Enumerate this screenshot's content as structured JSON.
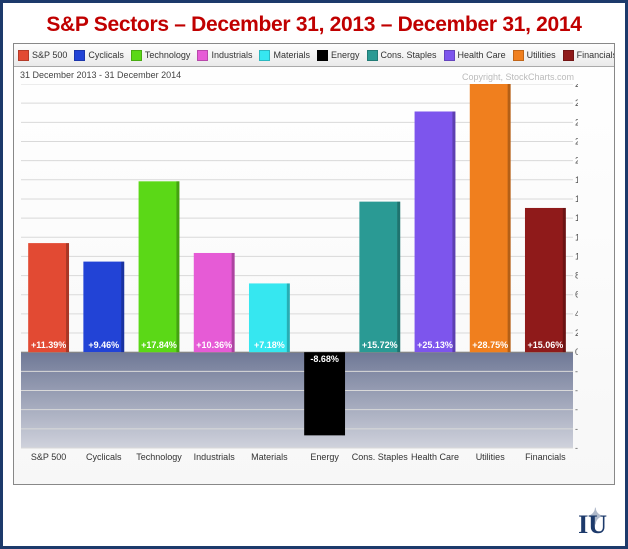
{
  "title": "S&P Sectors – December 31, 2013 – December 31, 2014",
  "subtitle": "31 December 2013 - 31 December 2014",
  "copyright": "Copyright, StockCharts.com",
  "chart": {
    "type": "bar",
    "ylim": [
      -10,
      28
    ],
    "ytick_step": 2,
    "ylabel_suffix": ".0%",
    "background_top": "#ffffff",
    "background_mid": "#e9e9ef",
    "neg_band_top": "#6f7896",
    "neg_band_bottom": "#cfd2dc",
    "grid_color": "#d9d9d9",
    "zero_color": "#777777",
    "bar_width": 0.74,
    "val_text_color": "#ffffff",
    "val_fontsize": 9,
    "axis_fontsize": 9,
    "series": [
      {
        "label": "S&P 500",
        "legend": "S&P 500",
        "value": 11.39,
        "value_label": "+11.39%",
        "color": "#e24a33"
      },
      {
        "label": "Cyclicals",
        "legend": "Cyclicals",
        "value": 9.46,
        "value_label": "+9.46%",
        "color": "#2243d6"
      },
      {
        "label": "Technology",
        "legend": "Technology",
        "value": 17.84,
        "value_label": "+17.84%",
        "color": "#5bd817"
      },
      {
        "label": "Industrials",
        "legend": "Industrials",
        "value": 10.36,
        "value_label": "+10.36%",
        "color": "#e65bd6"
      },
      {
        "label": "Materials",
        "legend": "Materials",
        "value": 7.18,
        "value_label": "+7.18%",
        "color": "#36e7f0"
      },
      {
        "label": "Energy",
        "legend": "Energy",
        "value": -8.68,
        "value_label": "-8.68%",
        "color": "#000000"
      },
      {
        "label": "Cons. Staples",
        "legend": "Cons. Staples",
        "value": 15.72,
        "value_label": "+15.72%",
        "color": "#2a9a94"
      },
      {
        "label": "Health Care",
        "legend": "Health Care",
        "value": 25.13,
        "value_label": "+25.13%",
        "color": "#7d55ed"
      },
      {
        "label": "Utilities",
        "legend": "Utilities",
        "value": 28.75,
        "value_label": "+28.75%",
        "color": "#f07f1e"
      },
      {
        "label": "Financials",
        "legend": "Financials",
        "value": 15.06,
        "value_label": "+15.06%",
        "color": "#8f1a1a"
      }
    ]
  },
  "logo_text": "IU"
}
